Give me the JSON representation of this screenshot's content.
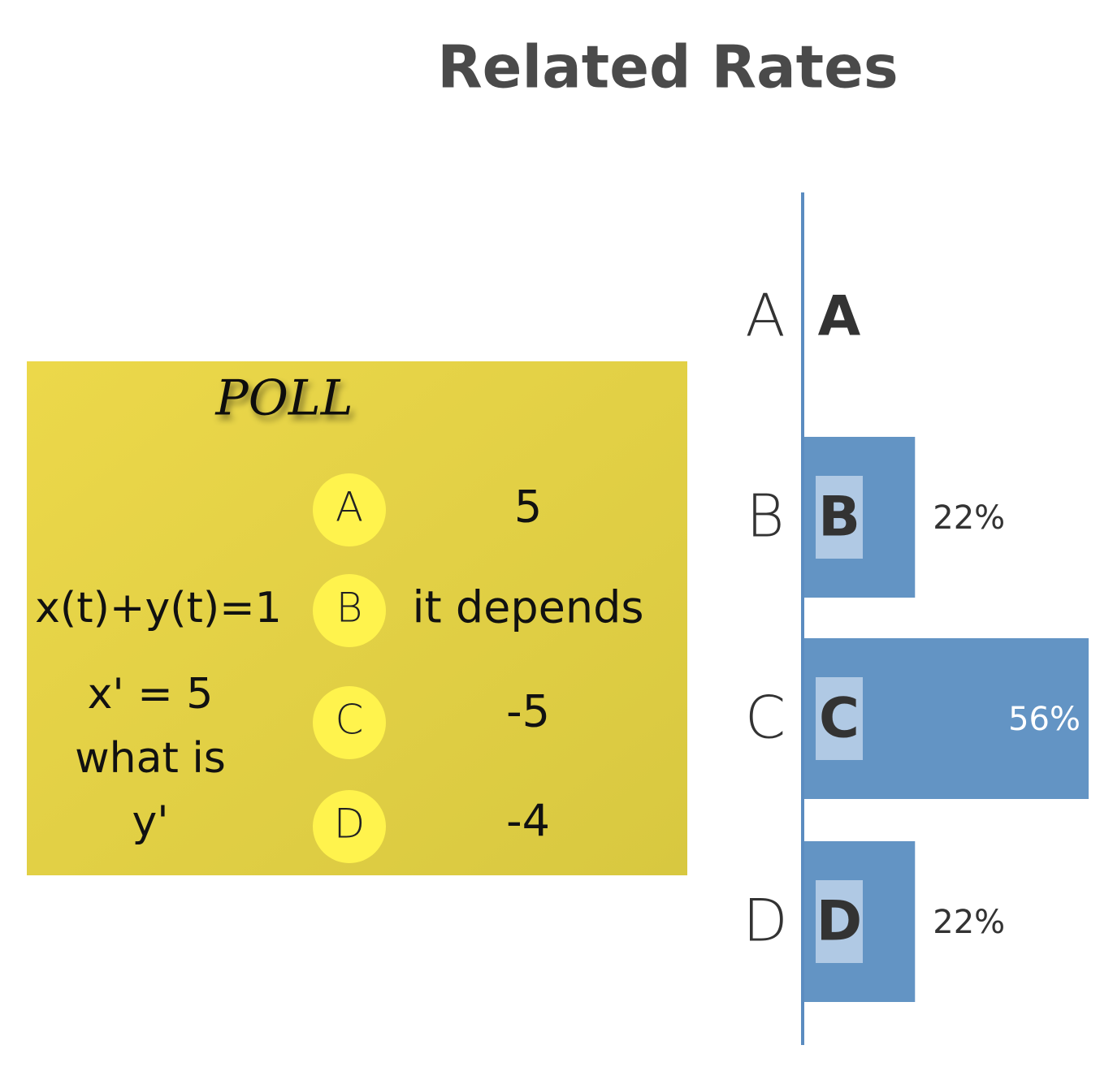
{
  "header": {
    "title": "Related Rates"
  },
  "poll": {
    "heading": "POLL",
    "question": [
      "x(t)+y(t)=1",
      "x' = 5",
      "what is",
      "y'"
    ],
    "options": [
      {
        "letter": "A",
        "answer": "5"
      },
      {
        "letter": "B",
        "answer": "it depends"
      },
      {
        "letter": "C",
        "answer": "-5"
      },
      {
        "letter": "D",
        "answer": "-4"
      }
    ]
  },
  "chart_data": {
    "type": "bar",
    "orientation": "horizontal",
    "categories": [
      "A",
      "B",
      "C",
      "D"
    ],
    "values": [
      0,
      22,
      56,
      22
    ],
    "value_labels": [
      null,
      "22%",
      "56%",
      "22%"
    ],
    "color": "#6394c4",
    "xlim": [
      0,
      56
    ]
  }
}
